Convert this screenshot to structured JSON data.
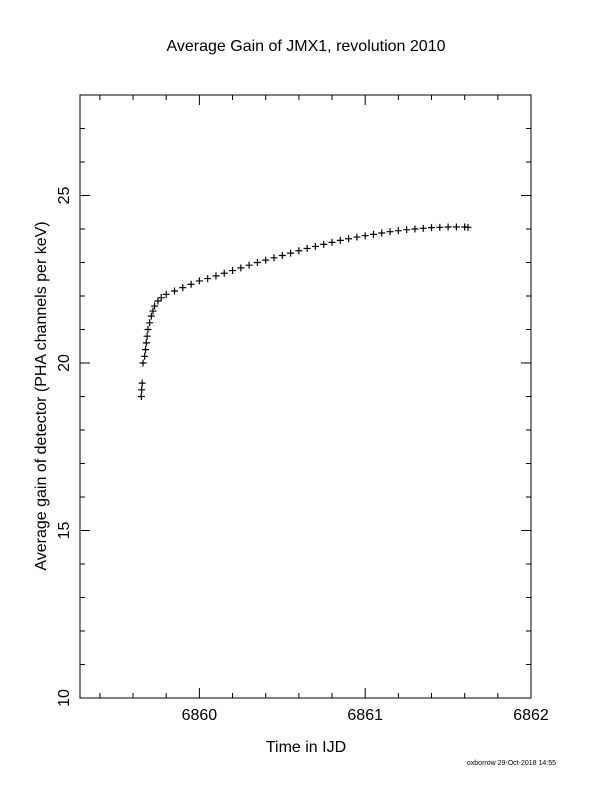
{
  "chart_data": {
    "type": "scatter",
    "title": "Average Gain of JMX1, revolution 2010",
    "x_label": "Time in IJD",
    "y_label": "Average gain of detector (PHA channels per keV)",
    "footer": "oxborrow 29-Oct-2018 14:55",
    "marker": "+",
    "color": "#000000",
    "xlim": [
      6859.28,
      6862
    ],
    "ylim": [
      10,
      28
    ],
    "xticks": [
      6860,
      6861,
      6862
    ],
    "yticks": [
      10,
      15,
      20,
      25
    ],
    "xminorticks": [
      6859.4,
      6859.6,
      6859.8,
      6860.2,
      6860.4,
      6860.6,
      6860.8,
      6861.2,
      6861.4,
      6861.6,
      6861.8
    ],
    "yminorticks": [
      11,
      12,
      13,
      14,
      16,
      17,
      18,
      19,
      21,
      22,
      23,
      24,
      26,
      27
    ],
    "x": [
      6859.65,
      6859.652,
      6859.655,
      6859.66,
      6859.67,
      6859.675,
      6859.68,
      6859.685,
      6859.69,
      6859.7,
      6859.71,
      6859.72,
      6859.73,
      6859.75,
      6859.77,
      6859.8,
      6859.85,
      6859.9,
      6859.95,
      6860.0,
      6860.05,
      6860.1,
      6860.15,
      6860.2,
      6860.25,
      6860.3,
      6860.35,
      6860.4,
      6860.45,
      6860.5,
      6860.55,
      6860.6,
      6860.65,
      6860.7,
      6860.75,
      6860.8,
      6860.85,
      6860.9,
      6860.95,
      6861.0,
      6861.05,
      6861.1,
      6861.15,
      6861.2,
      6861.25,
      6861.3,
      6861.35,
      6861.4,
      6861.45,
      6861.5,
      6861.55,
      6861.6,
      6861.62
    ],
    "values": [
      19.0,
      19.2,
      19.4,
      20.0,
      20.2,
      20.4,
      20.6,
      20.8,
      21.0,
      21.2,
      21.4,
      21.55,
      21.7,
      21.85,
      21.95,
      22.05,
      22.15,
      22.25,
      22.35,
      22.45,
      22.52,
      22.6,
      22.68,
      22.76,
      22.84,
      22.92,
      23.0,
      23.07,
      23.14,
      23.21,
      23.28,
      23.35,
      23.42,
      23.48,
      23.54,
      23.6,
      23.66,
      23.71,
      23.76,
      23.8,
      23.84,
      23.88,
      23.92,
      23.95,
      23.98,
      24.0,
      24.02,
      24.04,
      24.05,
      24.06,
      24.06,
      24.06,
      24.05
    ]
  }
}
